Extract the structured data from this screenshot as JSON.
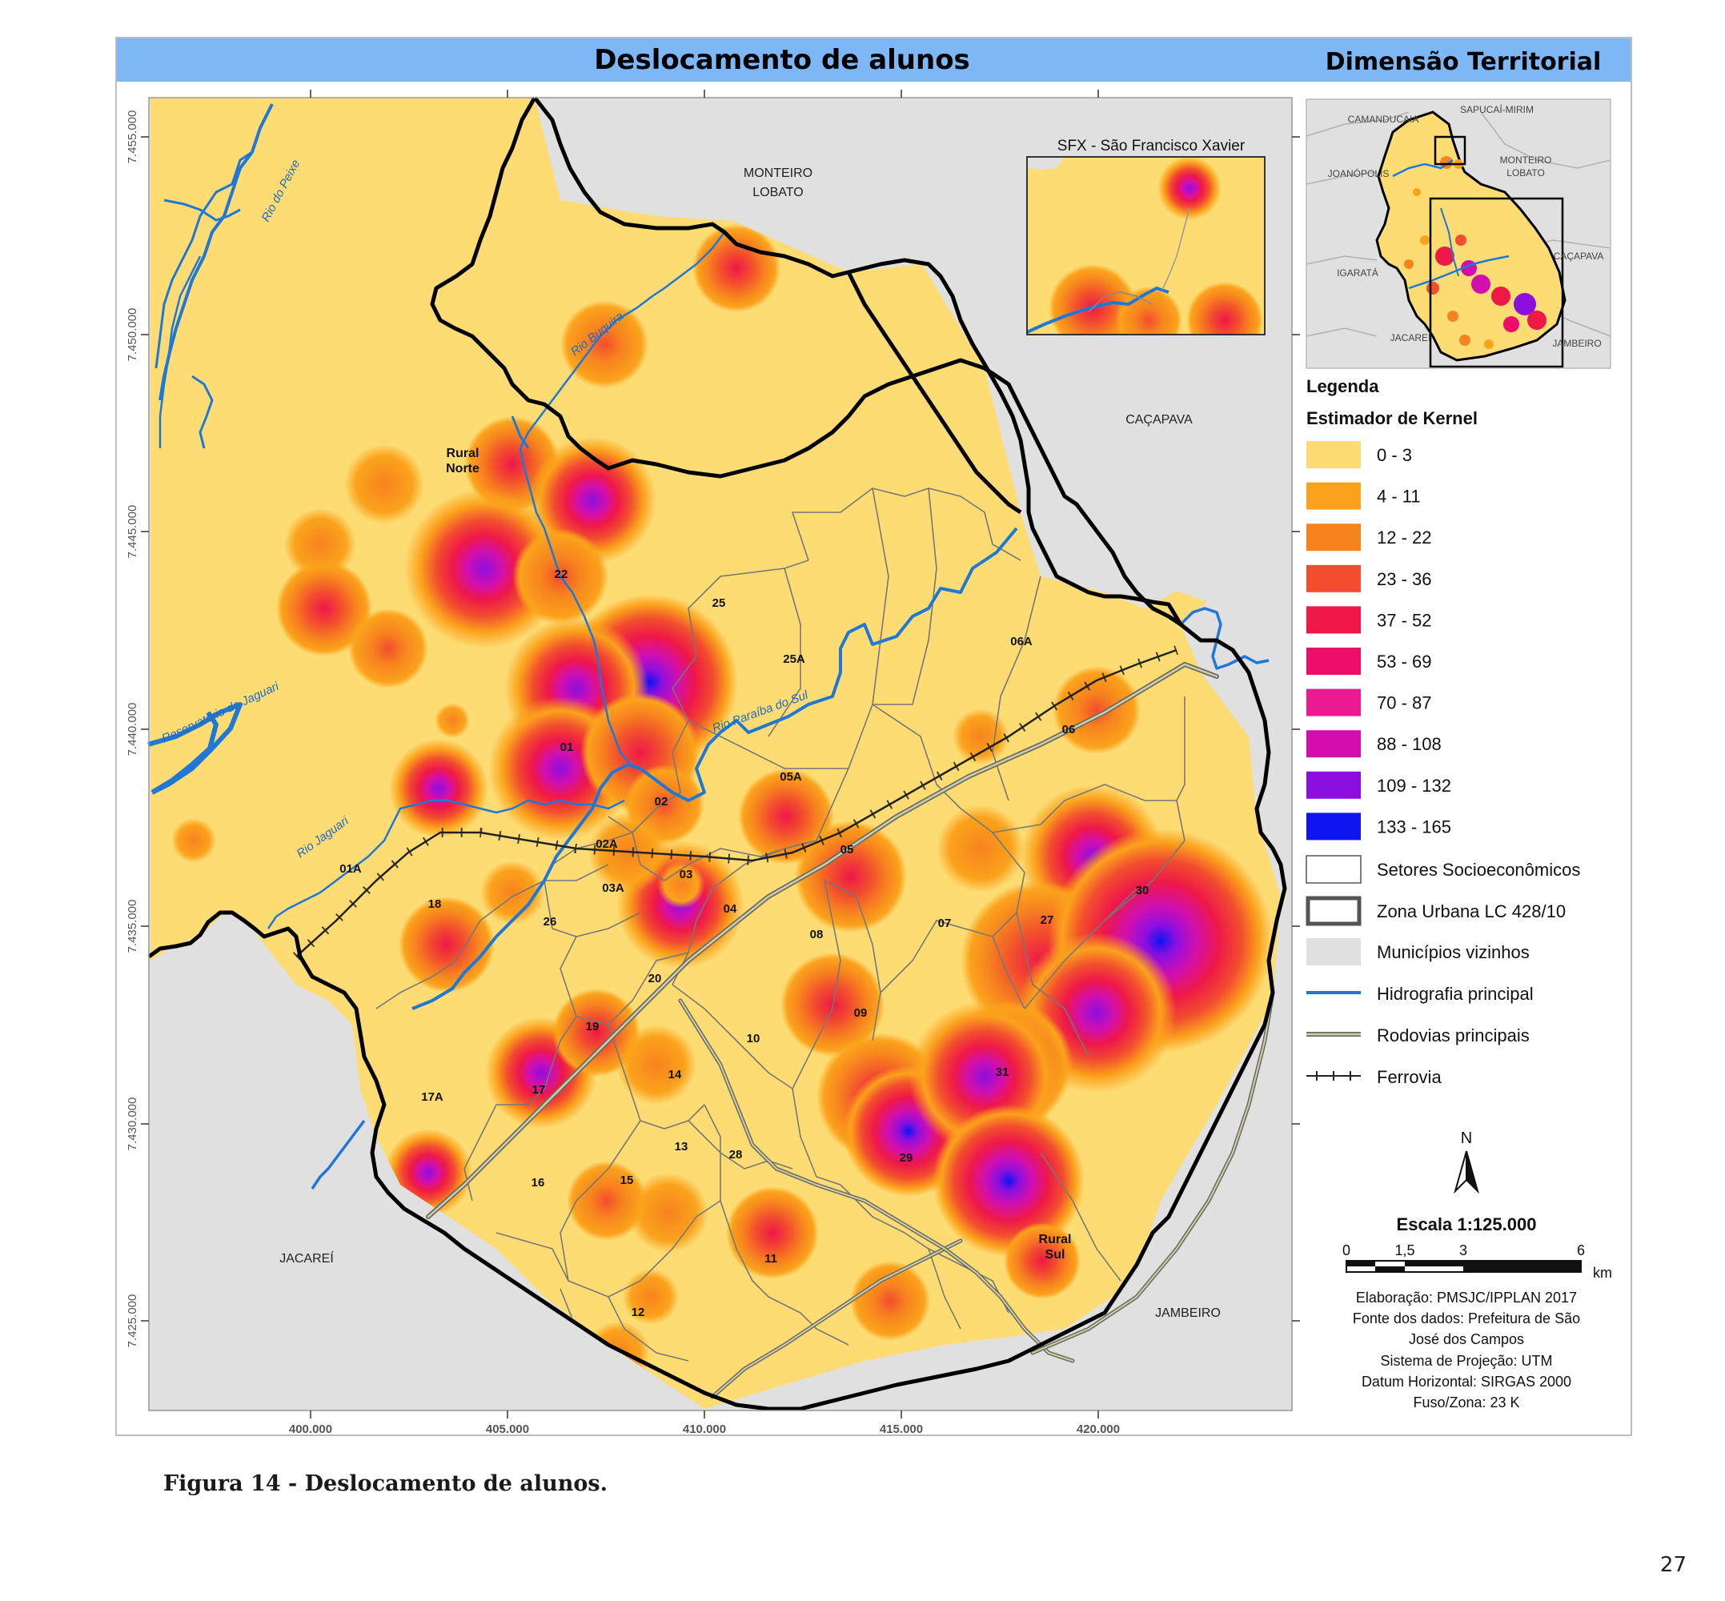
{
  "header": {
    "title": "Deslocamento de alunos",
    "dimension": "Dimensão Territorial"
  },
  "axes": {
    "y_ticks": [
      "7.455.000",
      "7.450.000",
      "7.445.000",
      "7.440.000",
      "7.435.000",
      "7.430.000",
      "7.425.000"
    ],
    "x_ticks": [
      "400.000",
      "405.000",
      "410.000",
      "415.000",
      "420.000"
    ]
  },
  "neighbors": {
    "monteiro": [
      "MONTEIRO",
      "LOBATO"
    ],
    "cacapava": "CAÇAPAVA",
    "jacarei": "JACAREÍ",
    "jambeiro": "JAMBEIRO"
  },
  "rivers": {
    "peixe": "Rio do Peixe",
    "buquira": "Rio Buquira",
    "jaguari_res": "Reservatório do Jaguari",
    "paraiba": "Rio Paraíba do Sul",
    "jaguari": "Rio Jaguari"
  },
  "regions": {
    "rural_norte": [
      "Rural",
      "Norte"
    ],
    "rural_sul": [
      "Rural",
      "Sul"
    ]
  },
  "sectors": [
    "01",
    "01A",
    "02",
    "02A",
    "03",
    "03A",
    "04",
    "05",
    "05A",
    "06",
    "06A",
    "07",
    "08",
    "09",
    "10",
    "11",
    "12",
    "13",
    "14",
    "15",
    "16",
    "17",
    "17A",
    "18",
    "19",
    "20",
    "22",
    "25",
    "25A",
    "26",
    "27",
    "28",
    "29",
    "30",
    "31"
  ],
  "inset_sfx": {
    "title": "SFX - São Francisco Xavier"
  },
  "locator_map": {
    "labels": [
      "CAMANDUCAIA",
      "SAPUCAÍ-MIRIM",
      "JOANÓPOLIS",
      "MONTEIRO",
      "LOBATO",
      "CAÇAPAVA",
      "IGARATÁ",
      "JACAREÍ",
      "JAMBEIRO"
    ]
  },
  "legend": {
    "title": "Legenda",
    "subtitle": "Estimador de Kernel",
    "kernel_classes": [
      {
        "label": "0 - 3",
        "color": "#FDDC73"
      },
      {
        "label": "4 - 11",
        "color": "#FBA21C"
      },
      {
        "label": "12 - 22",
        "color": "#F7831E"
      },
      {
        "label": "23 - 36",
        "color": "#F24D2E"
      },
      {
        "label": "37 - 52",
        "color": "#EE1848"
      },
      {
        "label": "53 - 69",
        "color": "#EE0E6A"
      },
      {
        "label": "70 - 87",
        "color": "#EB1A93"
      },
      {
        "label": "88 - 108",
        "color": "#D20FAE"
      },
      {
        "label": "109 - 132",
        "color": "#8C0FE0"
      },
      {
        "label": "133 - 165",
        "color": "#0F14F0"
      }
    ],
    "others": [
      {
        "label": "Setores Socioeconômicos",
        "icon": "sector-outline"
      },
      {
        "label": "Zona Urbana LC 428/10",
        "icon": "urban-zone-outline"
      },
      {
        "label": "Municípios vizinhos",
        "icon": "neighbor-fill"
      },
      {
        "label": "Hidrografia principal",
        "icon": "river-line"
      },
      {
        "label": "Rodovias principais",
        "icon": "highway-line"
      },
      {
        "label": "Ferrovia",
        "icon": "railway-line"
      }
    ]
  },
  "north_arrow": {
    "label": "N"
  },
  "scale": {
    "title": "Escala 1:125.000",
    "ticks": [
      "0",
      "1,5",
      "3",
      "6"
    ],
    "unit": "km"
  },
  "credits": [
    "Elaboração: PMSJC/IPPLAN 2017",
    "Fonte dos dados: Prefeitura de São",
    "José dos Campos",
    "Sistema de Projeção: UTM",
    "Datum Horizontal: SIRGAS 2000",
    "Fuso/Zona: 23 K"
  ],
  "caption": "Figura 14 - Deslocamento de alunos.",
  "page_number": "27"
}
